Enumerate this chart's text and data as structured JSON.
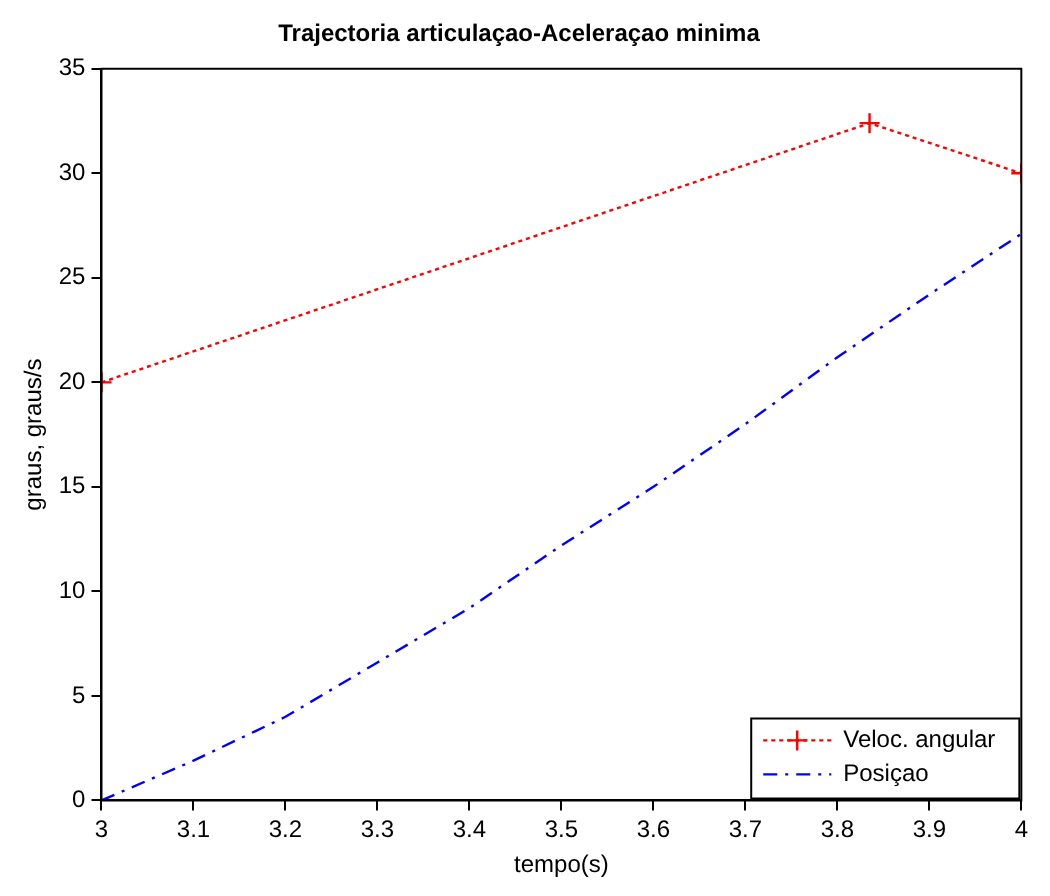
{
  "chart_data": {
    "type": "line",
    "title": "Trajectoria articulaçao-Aceleraçao minima",
    "xlabel": "tempo(s)",
    "ylabel": "graus, graus/s",
    "series": [
      {
        "name": "Veloc. angular",
        "color": "#ff0000",
        "x": [
          3,
          3.835,
          4
        ],
        "values": [
          20,
          32.4,
          30
        ],
        "marker": "cross",
        "line_style": "dotted"
      },
      {
        "name": "Posiçao",
        "color": "#0000ff",
        "x": [
          3,
          3.1,
          3.2,
          3.3,
          3.4,
          3.5,
          3.6,
          3.7,
          3.8,
          3.9,
          4
        ],
        "values": [
          0,
          1.9,
          4.0,
          6.6,
          9.2,
          12.2,
          15.0,
          18.0,
          21.2,
          24.2,
          27.1
        ],
        "marker": "none",
        "line_style": "dashed"
      }
    ],
    "xlim": [
      3,
      4
    ],
    "xticks": [
      3,
      3.1,
      3.2,
      3.3,
      3.4,
      3.5,
      3.6,
      3.7,
      3.8,
      3.9,
      4
    ],
    "ylim": [
      0,
      35
    ],
    "yticks": [
      0,
      5,
      10,
      15,
      20,
      25,
      30,
      35
    ],
    "grid": false,
    "legend": "bottom right"
  }
}
